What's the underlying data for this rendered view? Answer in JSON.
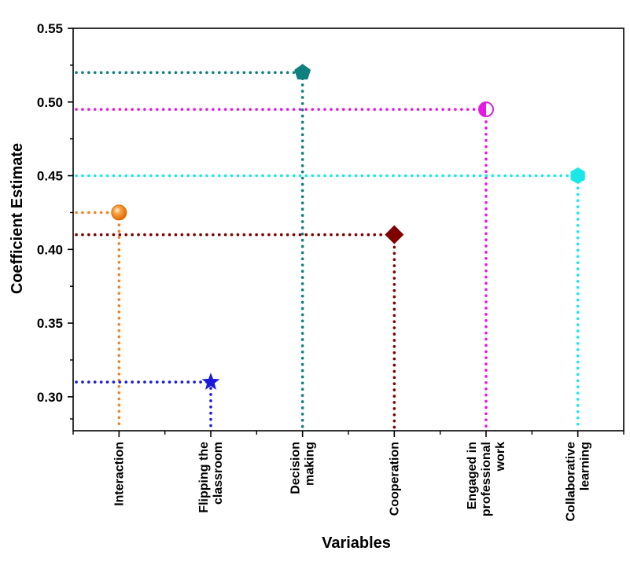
{
  "chart_data": {
    "type": "scatter",
    "xlabel": "Variables",
    "ylabel": "Coefficient Estimate",
    "ylim": [
      0.277,
      0.55
    ],
    "yticks": [
      "0.30",
      "0.35",
      "0.40",
      "0.45",
      "0.50",
      "0.55"
    ],
    "grid": false,
    "categories": [
      [
        "Interaction"
      ],
      [
        "Flipping the",
        "classroom"
      ],
      [
        "Decision",
        "making"
      ],
      [
        "Cooperation"
      ],
      [
        "Engaged in",
        "professional",
        "work"
      ],
      [
        "Collaborative",
        "learning"
      ]
    ],
    "points": [
      {
        "category": "Interaction",
        "value": 0.425,
        "color": "#f58220",
        "marker": "sphere"
      },
      {
        "category": "Flipping the classroom",
        "value": 0.31,
        "color": "#1a1adb",
        "marker": "star"
      },
      {
        "category": "Decision making",
        "value": 0.52,
        "color": "#0f7f7f",
        "marker": "pentagon"
      },
      {
        "category": "Cooperation",
        "value": 0.41,
        "color": "#7f0000",
        "marker": "diamond"
      },
      {
        "category": "Engaged in professional work",
        "value": 0.495,
        "color": "#e31ae3",
        "marker": "half-circle"
      },
      {
        "category": "Collaborative learning",
        "value": 0.45,
        "color": "#1ae8e8",
        "marker": "hexagon"
      }
    ]
  }
}
